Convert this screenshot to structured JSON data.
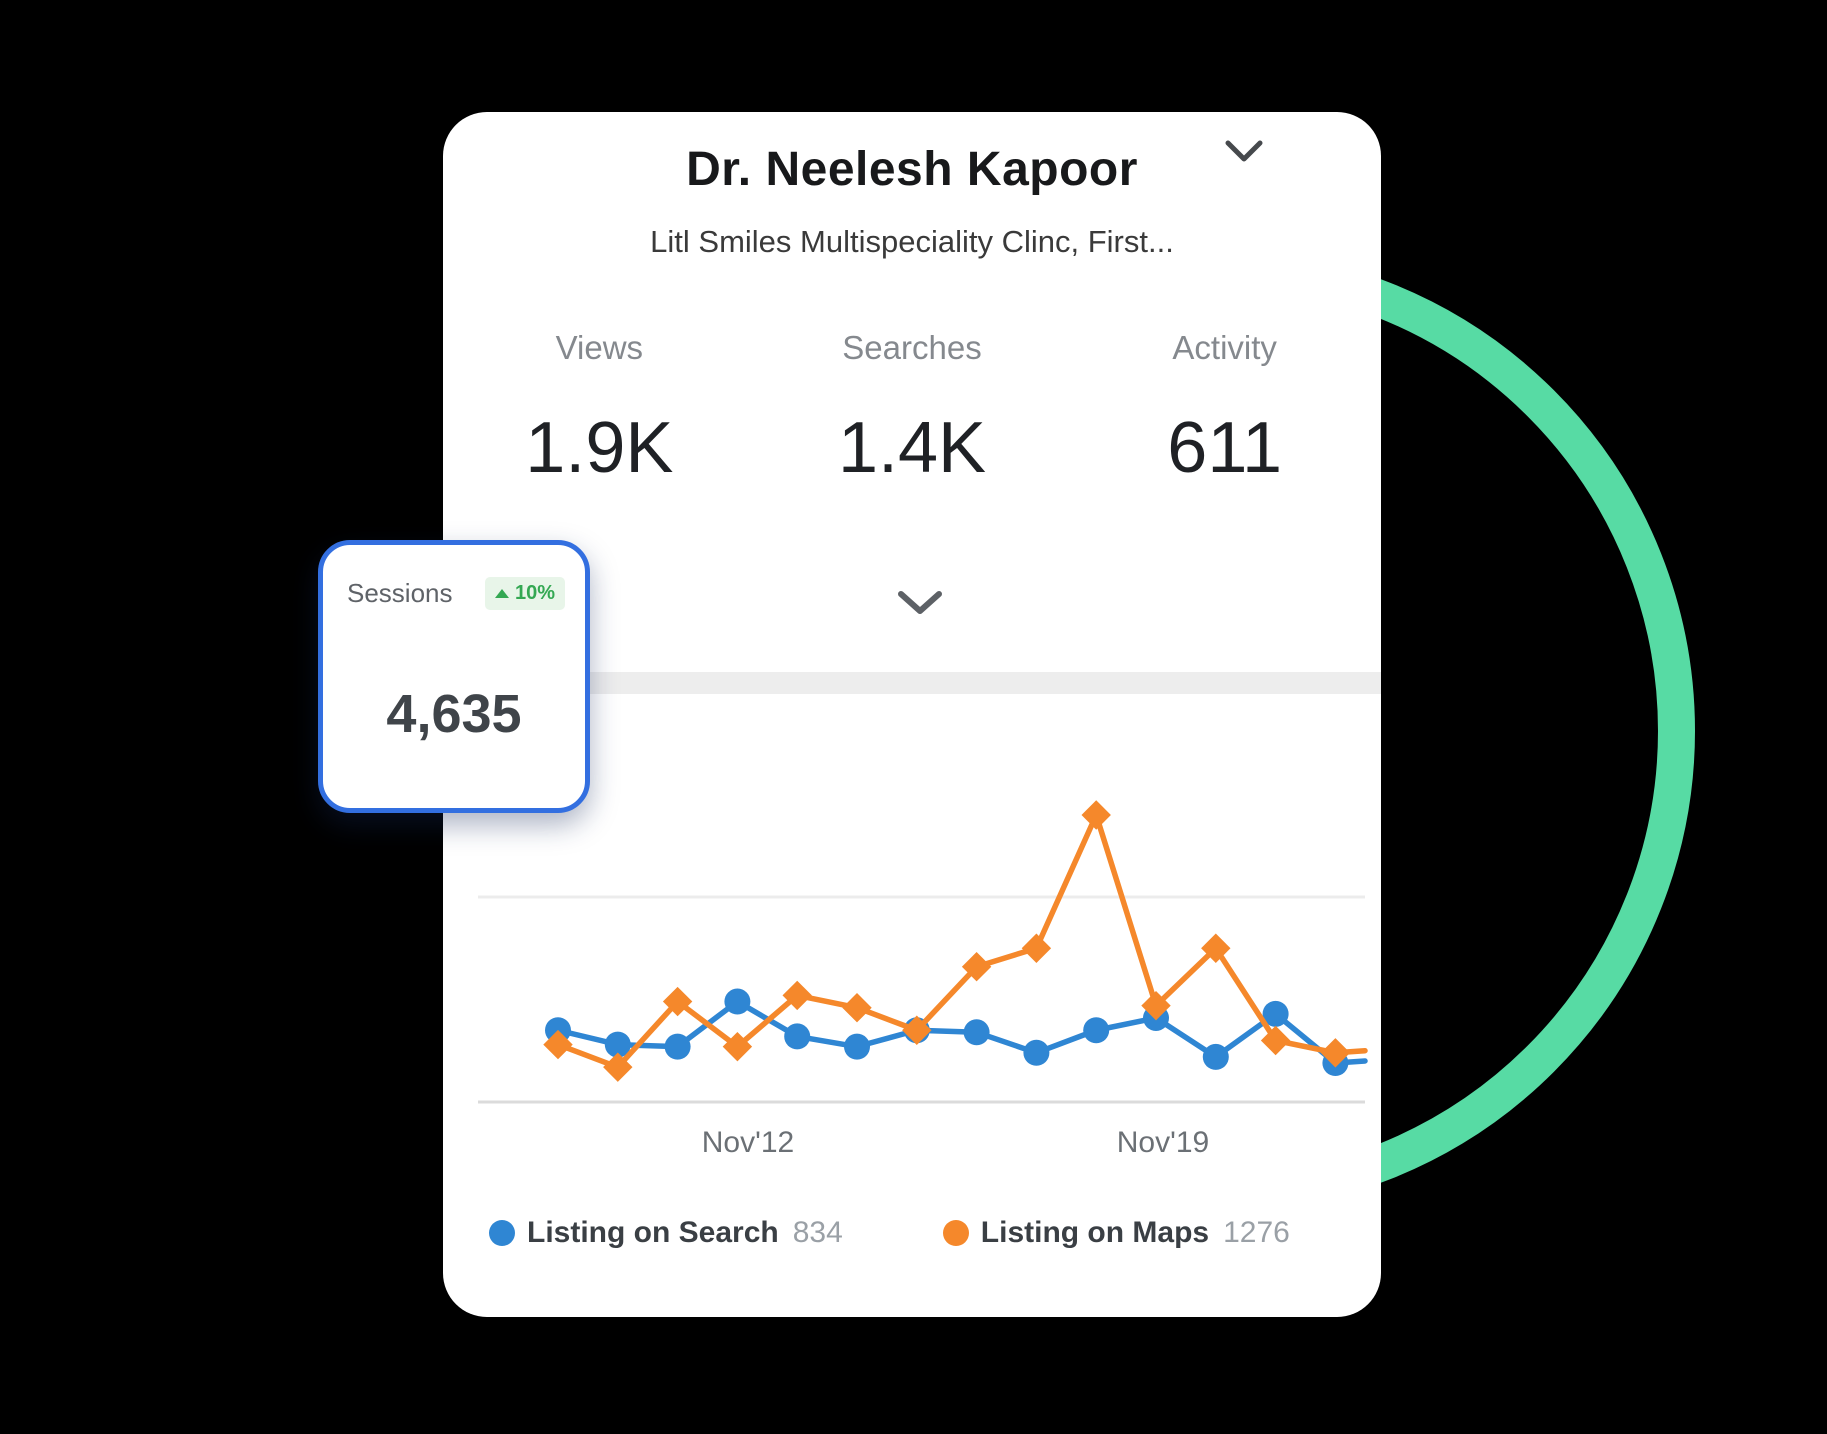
{
  "colors": {
    "background": "#000000",
    "card_bg": "#FFFFFF",
    "ring_green": "#57DBA4",
    "search_blue": "#2F86D3",
    "maps_orange": "#F5882B",
    "sessions_border_blue": "#336FE0",
    "badge_bg": "#E8F5E9",
    "badge_green": "#34A853"
  },
  "icons": {
    "header_chevron": "chevron-down",
    "collapse_chevron": "chevron-down",
    "badge_arrow": "triangle-up"
  },
  "profile_card": {
    "title": "Dr. Neelesh Kapoor",
    "subtitle": "Litl Smiles Multispeciality Clinc, First...",
    "stats": [
      {
        "label": "Views",
        "value": "1.9K"
      },
      {
        "label": "Searches",
        "value": "1.4K"
      },
      {
        "label": "Activity",
        "value": "611"
      }
    ]
  },
  "sessions_card": {
    "label": "Sessions",
    "value": "4,635",
    "change": "10%",
    "change_direction": "up"
  },
  "chart_data": {
    "type": "line",
    "title": "",
    "x_tick_labels": [
      "Nov'12",
      "Nov'19"
    ],
    "ylim": [
      0,
      150
    ],
    "gridline_value": 100,
    "grid": "one horizontal gridline plus baseline, no y tick labels",
    "legend_position": "bottom-left",
    "series": [
      {
        "name": "Listing on Search",
        "legend_value": "834",
        "color": "#2F86D3",
        "marker": "circle",
        "values": [
          35,
          28,
          27,
          49,
          32,
          27,
          35,
          34,
          24,
          35,
          41,
          22,
          43,
          19
        ],
        "tail_value": 20
      },
      {
        "name": "Listing on Maps",
        "legend_value": "1276",
        "color": "#F5882B",
        "marker": "diamond",
        "values": [
          28,
          17,
          49,
          27,
          52,
          46,
          35,
          66,
          75,
          140,
          47,
          75,
          30,
          24
        ],
        "tail_value": 25
      }
    ],
    "layout": {
      "x_start": 115,
      "x_step": 59.8,
      "tail_x": 922,
      "baseline_y": 408,
      "gridline_y": 203,
      "axis_x1": 35,
      "axis_x2": 922,
      "tick_positions_x": [
        305,
        720
      ],
      "tick_y": 458,
      "axis_color": "#DBDBDB",
      "grid_color": "#ECECEC",
      "tick_color": "#6B7075",
      "tick_font_size": 30,
      "line_width": 5.5,
      "marker_size": 13
    }
  }
}
